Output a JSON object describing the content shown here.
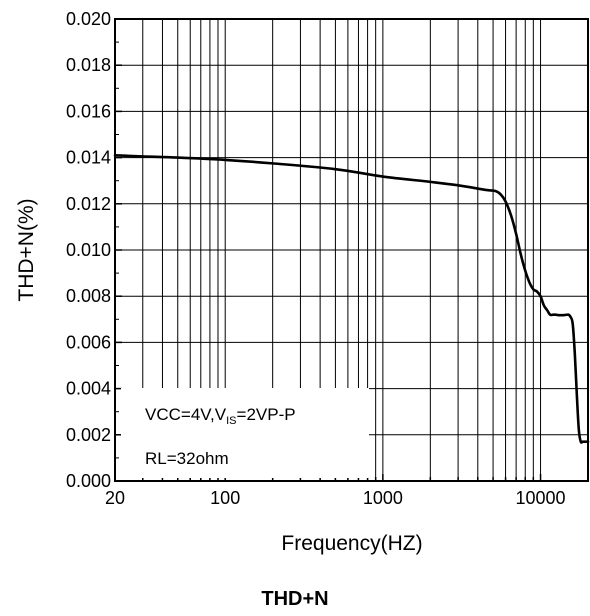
{
  "chart_data": {
    "type": "line",
    "title": "",
    "caption": "THD+N",
    "xlabel": "Frequency(HZ)",
    "ylabel": "THD+N(%)",
    "x_scale": "log",
    "xlim": [
      20,
      20000
    ],
    "ylim": [
      0.0,
      0.02
    ],
    "x_ticks": [
      20,
      100,
      1000,
      10000
    ],
    "x_tick_labels": [
      "20",
      "100",
      "1000",
      "10000"
    ],
    "y_ticks": [
      0.0,
      0.002,
      0.004,
      0.006,
      0.008,
      0.01,
      0.012,
      0.014,
      0.016,
      0.018,
      0.02
    ],
    "y_tick_labels": [
      "0.000",
      "0.002",
      "0.004",
      "0.006",
      "0.008",
      "0.010",
      "0.012",
      "0.014",
      "0.016",
      "0.018",
      "0.020"
    ],
    "grid": true,
    "annotation": {
      "line1_prefix": "VCC=4V,V",
      "line1_sub": "IS",
      "line1_suffix": "=2VP-P",
      "line2": "RL=32ohm"
    },
    "series": [
      {
        "x": [
          20,
          30,
          50,
          100,
          200,
          500,
          1000,
          2000,
          3000,
          4500,
          5200,
          5600,
          6000,
          6500,
          7000,
          7500,
          8000,
          8500,
          9000,
          9500,
          10000,
          10500,
          11000,
          11500,
          12000,
          12500,
          13000,
          14000,
          15000,
          15500,
          16000,
          16500,
          17000,
          17500,
          18000,
          18500,
          19000,
          20000
        ],
        "y": [
          0.0141,
          0.01405,
          0.014,
          0.0139,
          0.01375,
          0.0135,
          0.01318,
          0.01295,
          0.0128,
          0.0126,
          0.01255,
          0.0124,
          0.0121,
          0.0115,
          0.0107,
          0.0098,
          0.0091,
          0.0086,
          0.0083,
          0.0082,
          0.008,
          0.0076,
          0.0074,
          0.0072,
          0.0072,
          0.0072,
          0.00718,
          0.00718,
          0.0072,
          0.0071,
          0.0068,
          0.0055,
          0.0037,
          0.0022,
          0.0017,
          0.0017,
          0.0017,
          0.0017
        ]
      }
    ]
  }
}
